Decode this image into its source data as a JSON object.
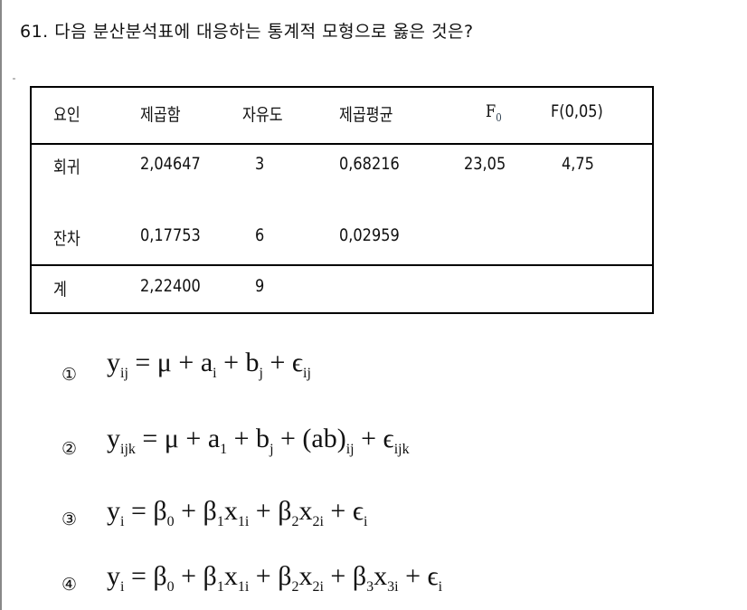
{
  "question": {
    "title": "61. 다음 분산분석표에 대응하는 통계적 모형으로 옳은 것은?"
  },
  "table": {
    "headers": [
      "요인",
      "제곱함",
      "자유도",
      "제곱평균",
      "F",
      "F(0,05)"
    ],
    "f0_sub": "0",
    "rows": [
      [
        "회귀",
        "2,04647",
        "3",
        "0,68216",
        "23,05",
        "4,75"
      ],
      [
        "잔차",
        "0,17753",
        "6",
        "0,02959",
        "",
        ""
      ],
      [
        "계",
        "2,22400",
        "9",
        "",
        "",
        ""
      ]
    ]
  },
  "options": [
    {
      "number": "①",
      "parts": [
        [
          "y",
          "ij"
        ],
        [
          " = μ + a",
          "i"
        ],
        [
          " + b",
          "j"
        ],
        [
          " + ϵ",
          "ij"
        ]
      ]
    },
    {
      "number": "②",
      "parts": [
        [
          "y",
          "ijk"
        ],
        [
          " = μ + a",
          "1"
        ],
        [
          " + b",
          "j"
        ],
        [
          " + (ab)",
          "ij"
        ],
        [
          " + ϵ",
          "ijk"
        ]
      ]
    },
    {
      "number": "③",
      "parts": [
        [
          "y",
          "i"
        ],
        [
          " = β",
          "0"
        ],
        [
          " + β",
          "1"
        ],
        [
          "x",
          "1i"
        ],
        [
          " + β",
          "2"
        ],
        [
          "x",
          "2i"
        ],
        [
          " + ϵ",
          "i"
        ]
      ]
    },
    {
      "number": "④",
      "parts": [
        [
          "y",
          "i"
        ],
        [
          " = β",
          "0"
        ],
        [
          " + β",
          "1"
        ],
        [
          "x",
          "1i"
        ],
        [
          " + β",
          "2"
        ],
        [
          "x",
          "2i"
        ],
        [
          " + β",
          "3"
        ],
        [
          "x",
          "3i"
        ],
        [
          " + ϵ",
          "i"
        ]
      ]
    }
  ]
}
